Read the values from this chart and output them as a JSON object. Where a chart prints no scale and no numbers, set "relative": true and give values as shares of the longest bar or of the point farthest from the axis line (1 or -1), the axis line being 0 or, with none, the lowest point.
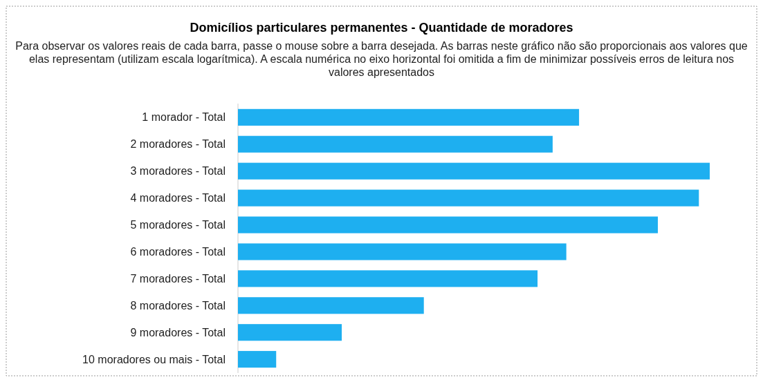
{
  "chart_data": {
    "type": "bar",
    "orientation": "horizontal",
    "relative": true,
    "title": "Domicílios particulares permanentes - Quantidade de moradores",
    "subtitle": "Para observar os valores reais de cada barra, passe o mouse sobre a barra desejada. As barras neste gráfico não são proporcionais aos valores que elas representam (utilizam escala logarítmica). A escala numérica no eixo horizontal foi omitida a fim de minimizar possíveis erros de leitura nos valores apresentados",
    "categories": [
      "1 morador - Total",
      "2 moradores - Total",
      "3 moradores - Total",
      "4 moradores - Total",
      "5 moradores - Total",
      "6 moradores - Total",
      "7 moradores - Total",
      "8 moradores - Total",
      "9 moradores - Total",
      "10 moradores ou mais - Total"
    ],
    "values": [
      0.723,
      0.667,
      1,
      0.977,
      0.89,
      0.696,
      0.635,
      0.394,
      0.22,
      0.081
    ],
    "color": "#1eaff0"
  }
}
